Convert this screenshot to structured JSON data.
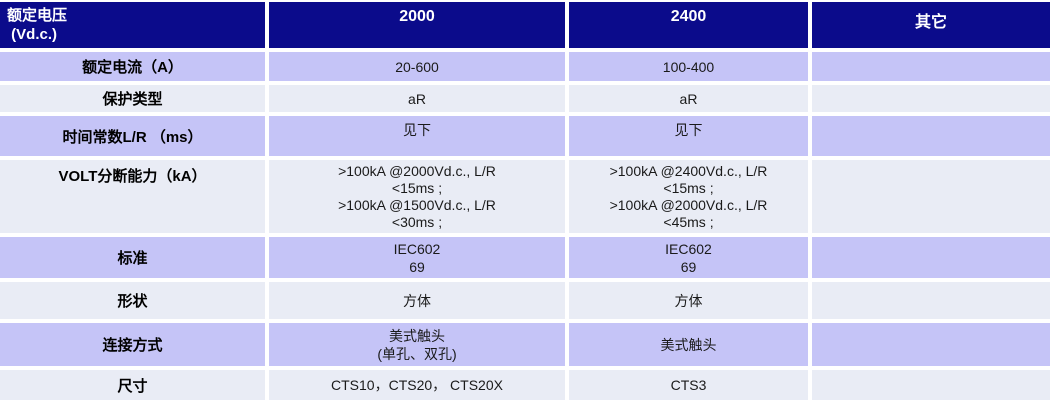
{
  "colors": {
    "header_bg": "#0b0b8b",
    "header_text": "#ffffff",
    "row_alt_purple": "#c5c4f7",
    "row_alt_light": "#e9ecf5",
    "grid_lines": "#ffffff",
    "label_text": "#000000",
    "value_text": "#1a1a1a"
  },
  "table": {
    "header": {
      "rated_voltage": "额定电压\n (Vd.c.)",
      "col_2000": "2000",
      "col_2400": "2400",
      "col_other": "其它"
    },
    "rows": [
      {
        "key": "rated-current",
        "label": "额定电流（A）",
        "values": [
          "20-600",
          "100-400",
          ""
        ]
      },
      {
        "key": "protection-type",
        "label": "保护类型",
        "values": [
          "aR",
          "aR",
          ""
        ]
      },
      {
        "key": "time-constant",
        "label": "时间常数L/R （ms）",
        "values": [
          "见下",
          "见下",
          ""
        ]
      },
      {
        "key": "breaking-capacity",
        "label": "VOLT分断能力（kA）",
        "values": [
          ">100kA @2000Vd.c., L/R\n<15ms ;\n>100kA @1500Vd.c., L/R\n<30ms ;",
          ">100kA @2400Vd.c., L/R\n<15ms ;\n>100kA @2000Vd.c., L/R\n<45ms ;",
          ""
        ]
      },
      {
        "key": "standard",
        "label": "标准",
        "values": [
          "IEC602\n69",
          "IEC602\n69",
          ""
        ]
      },
      {
        "key": "shape",
        "label": "形状",
        "values": [
          "方体",
          "方体",
          ""
        ]
      },
      {
        "key": "connection-type",
        "label": "连接方式",
        "values": [
          "美式触头\n(单孔、双孔)",
          "美式触头",
          ""
        ]
      },
      {
        "key": "dimensions",
        "label": "尺寸",
        "values": [
          "CTS10，CTS20，  CTS20X",
          "CTS3",
          ""
        ]
      }
    ]
  }
}
